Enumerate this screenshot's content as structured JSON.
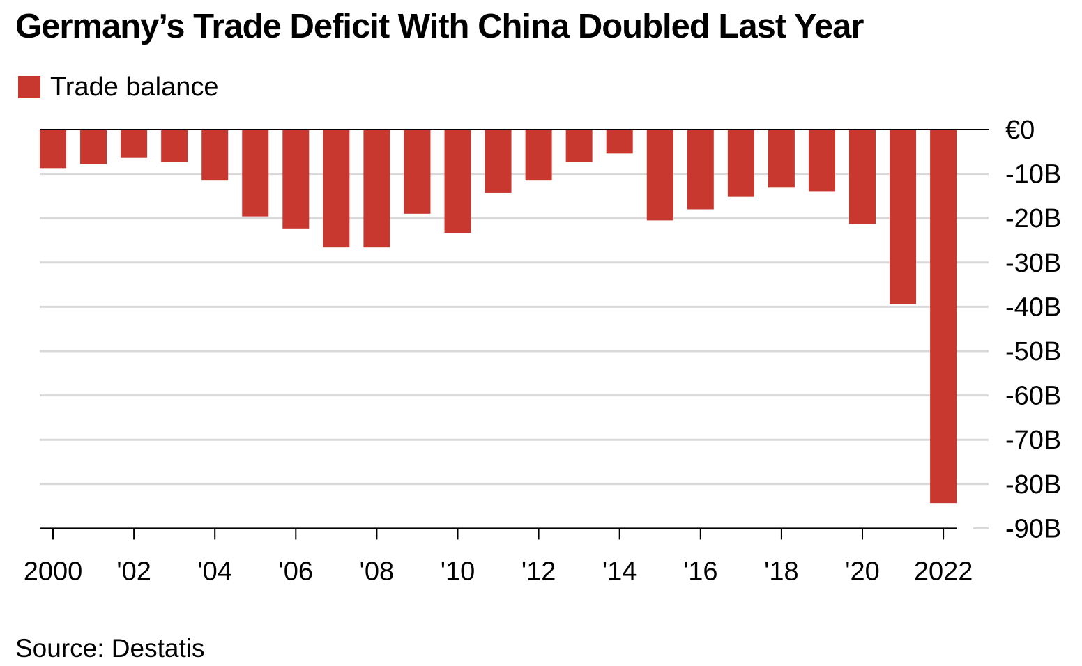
{
  "title": "Germany’s Trade Deficit With China Doubled Last Year",
  "legend": {
    "label": "Trade balance"
  },
  "source": "Source: Destatis",
  "colors": {
    "bar": "#c9382e",
    "grid": "#d9d9d9",
    "axis": "#000000"
  },
  "chart_data": {
    "type": "bar",
    "title": "Germany’s Trade Deficit With China Doubled Last Year",
    "xlabel": "",
    "ylabel": "",
    "categories": [
      "2000",
      "2001",
      "2002",
      "2003",
      "2004",
      "2005",
      "2006",
      "2007",
      "2008",
      "2009",
      "2010",
      "2011",
      "2012",
      "2013",
      "2014",
      "2015",
      "2016",
      "2017",
      "2018",
      "2019",
      "2020",
      "2021",
      "2022"
    ],
    "series": [
      {
        "name": "Trade balance",
        "values": [
          -8.7,
          -7.8,
          -6.4,
          -7.3,
          -11.5,
          -19.6,
          -22.3,
          -26.6,
          -26.6,
          -19.0,
          -23.3,
          -14.3,
          -11.5,
          -7.3,
          -5.4,
          -20.5,
          -18.0,
          -15.2,
          -13.1,
          -13.9,
          -21.3,
          -39.4,
          -84.3
        ]
      }
    ],
    "ylim": [
      -90,
      0
    ],
    "yticks": [
      0,
      -10,
      -20,
      -30,
      -40,
      -50,
      -60,
      -70,
      -80,
      -90
    ],
    "ytick_labels": [
      "€0",
      "-10B",
      "-20B",
      "-30B",
      "-40B",
      "-50B",
      "-60B",
      "-70B",
      "-80B",
      "-90B"
    ],
    "xticks": [
      "2000",
      "2002",
      "2004",
      "2006",
      "2008",
      "2010",
      "2012",
      "2014",
      "2016",
      "2018",
      "2020",
      "2022"
    ],
    "xtick_labels": [
      "2000",
      "'02",
      "'04",
      "'06",
      "'08",
      "'10",
      "'12",
      "'14",
      "'16",
      "'18",
      "'20",
      "2022"
    ],
    "grid": true,
    "legend_position": "top-left"
  }
}
